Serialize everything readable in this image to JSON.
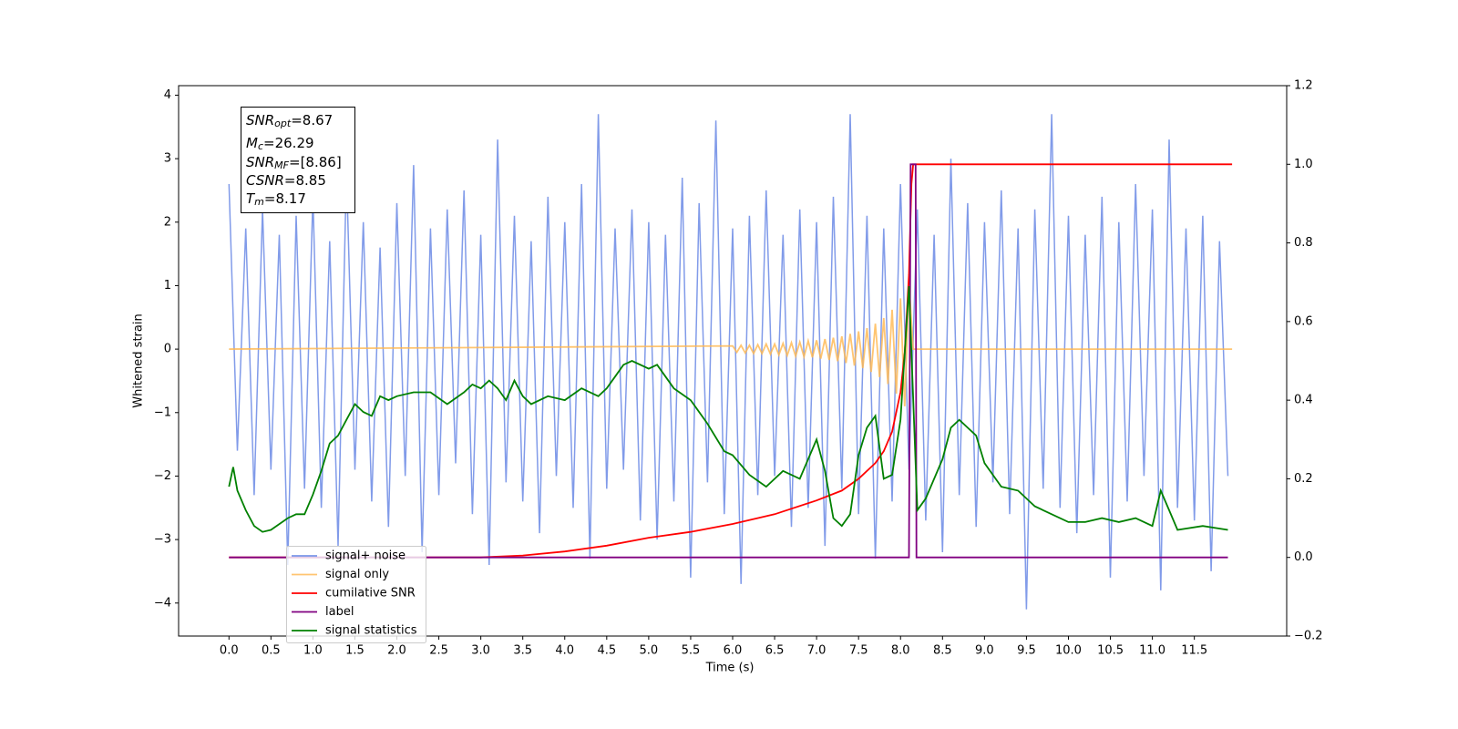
{
  "chart_data": {
    "type": "line",
    "xlabel": "Time (s)",
    "ylabel": "Whitened strain",
    "xlim": [
      -0.6,
      12.6
    ],
    "ylim": [
      -4.52,
      4.15
    ],
    "y2lim": [
      -0.2,
      1.2
    ],
    "xticks": [
      {
        "value": 0,
        "label": "0.0"
      },
      0.5,
      {
        "value": 1,
        "label": "1.0"
      },
      1.5,
      {
        "value": 2,
        "label": "2.0"
      },
      2.5,
      {
        "value": 3,
        "label": "3.0"
      },
      3.5,
      {
        "value": 4,
        "label": "4.0"
      },
      4.5,
      {
        "value": 5,
        "label": "5.0"
      },
      5.5,
      {
        "value": 6,
        "label": "6.0"
      },
      6.5,
      {
        "value": 7,
        "label": "7.0"
      },
      7.5,
      {
        "value": 8,
        "label": "8.0"
      },
      8.5,
      {
        "value": 9,
        "label": "9.0"
      },
      9.5,
      {
        "value": 10,
        "label": "10.0"
      },
      10.5,
      {
        "value": 11,
        "label": "11.0"
      },
      11.5
    ],
    "yticks": [
      {
        "value": -4,
        "label": "−4"
      },
      {
        "value": -3,
        "label": "−3"
      },
      {
        "value": -2,
        "label": "−2"
      },
      {
        "value": -1,
        "label": "−1"
      },
      0,
      1,
      2,
      3,
      4
    ],
    "y2ticks": [
      {
        "value": -0.2,
        "label": "−0.2"
      },
      {
        "value": 0,
        "label": "0.0"
      },
      0.2,
      0.4,
      0.6,
      0.8,
      {
        "value": 1,
        "label": "1.0"
      },
      1.2
    ],
    "legend": "lower left",
    "annotation_box": [
      {
        "symbol": "SNR",
        "subscript": "opt",
        "text": "=8.67"
      },
      {
        "symbol": "M",
        "subscript": "c",
        "text": "=26.29"
      },
      {
        "symbol": "SNR",
        "subscript": "MF",
        "text": "=[8.86]"
      },
      {
        "symbol": "CSNR",
        "subscript": "",
        "text": "=8.85"
      },
      {
        "symbol": "T",
        "subscript": "m",
        "text": "=8.17"
      }
    ],
    "series": [
      {
        "name": "signal+ noise",
        "color": "#7a96e8",
        "axis": "y",
        "x": [
          0.0,
          0.1,
          0.2,
          0.3,
          0.4,
          0.5,
          0.6,
          0.7,
          0.8,
          0.9,
          1.0,
          1.1,
          1.2,
          1.3,
          1.4,
          1.5,
          1.6,
          1.7,
          1.8,
          1.9,
          2.0,
          2.1,
          2.2,
          2.3,
          2.4,
          2.5,
          2.6,
          2.7,
          2.8,
          2.9,
          3.0,
          3.1,
          3.2,
          3.3,
          3.4,
          3.5,
          3.6,
          3.7,
          3.8,
          3.9,
          4.0,
          4.1,
          4.2,
          4.3,
          4.4,
          4.5,
          4.6,
          4.7,
          4.8,
          4.9,
          5.0,
          5.1,
          5.2,
          5.3,
          5.4,
          5.5,
          5.6,
          5.7,
          5.8,
          5.9,
          6.0,
          6.1,
          6.2,
          6.3,
          6.4,
          6.5,
          6.6,
          6.7,
          6.8,
          6.9,
          7.0,
          7.1,
          7.2,
          7.3,
          7.4,
          7.5,
          7.6,
          7.7,
          7.8,
          7.9,
          8.0,
          8.1,
          8.2,
          8.3,
          8.4,
          8.5,
          8.6,
          8.7,
          8.8,
          8.9,
          9.0,
          9.1,
          9.2,
          9.3,
          9.4,
          9.5,
          9.6,
          9.7,
          9.8,
          9.9,
          10.0,
          10.1,
          10.2,
          10.3,
          10.4,
          10.5,
          10.6,
          10.7,
          10.8,
          10.9,
          11.0,
          11.1,
          11.2,
          11.3,
          11.4,
          11.5,
          11.6,
          11.7,
          11.8,
          11.9
        ],
        "values": [
          2.6,
          -1.6,
          1.9,
          -2.3,
          2.2,
          -1.9,
          1.8,
          -3.4,
          2.1,
          -2.2,
          2.4,
          -2.5,
          1.7,
          -3.1,
          2.8,
          -1.9,
          2.0,
          -2.4,
          1.6,
          -2.8,
          2.3,
          -2.0,
          2.9,
          -3.2,
          1.9,
          -2.3,
          2.2,
          -1.8,
          2.5,
          -2.6,
          1.8,
          -3.4,
          3.3,
          -2.1,
          2.1,
          -2.4,
          1.7,
          -2.9,
          2.4,
          -2.0,
          2.0,
          -2.5,
          2.6,
          -3.3,
          3.7,
          -2.2,
          1.9,
          -1.9,
          2.2,
          -2.7,
          2.0,
          -3.0,
          1.8,
          -2.4,
          2.7,
          -3.6,
          2.3,
          -2.1,
          3.6,
          -2.6,
          1.9,
          -3.7,
          2.1,
          -2.3,
          2.5,
          -2.0,
          1.8,
          -2.8,
          2.2,
          -2.5,
          2.0,
          -3.1,
          2.4,
          -2.2,
          3.7,
          -2.6,
          2.1,
          -3.3,
          1.9,
          -2.4,
          2.6,
          -1.9,
          2.2,
          -2.7,
          1.8,
          -3.2,
          3.0,
          -2.3,
          2.3,
          -2.8,
          2.0,
          -2.1,
          2.5,
          -2.6,
          1.9,
          -4.1,
          2.2,
          -2.2,
          3.7,
          -2.5,
          2.1,
          -2.9,
          1.8,
          -2.3,
          2.4,
          -3.6,
          2.0,
          -2.4,
          2.6,
          -2.0,
          2.2,
          -3.8,
          3.3,
          -2.5,
          1.9,
          -2.7,
          2.1,
          -3.5,
          1.7,
          -2.0
        ]
      },
      {
        "name": "signal only",
        "color": "#ffb74d",
        "axis": "y",
        "x": [
          0.0,
          6.0,
          6.05,
          6.1,
          6.15,
          6.2,
          6.25,
          6.3,
          6.35,
          6.4,
          6.45,
          6.5,
          6.55,
          6.6,
          6.65,
          6.7,
          6.75,
          6.8,
          6.85,
          6.9,
          6.95,
          7.0,
          7.05,
          7.1,
          7.15,
          7.2,
          7.25,
          7.3,
          7.35,
          7.4,
          7.45,
          7.5,
          7.55,
          7.6,
          7.65,
          7.7,
          7.75,
          7.8,
          7.85,
          7.9,
          7.95,
          8.0,
          8.05,
          8.1,
          8.15,
          11.95
        ],
        "values": [
          0,
          0.05,
          -0.05,
          0.06,
          -0.06,
          0.06,
          -0.07,
          0.07,
          -0.07,
          0.08,
          -0.08,
          0.08,
          -0.09,
          0.09,
          -0.1,
          0.1,
          -0.11,
          0.11,
          -0.12,
          0.13,
          -0.13,
          0.14,
          -0.15,
          0.16,
          -0.17,
          0.18,
          -0.19,
          0.2,
          -0.22,
          0.24,
          -0.26,
          0.28,
          -0.3,
          0.33,
          -0.36,
          0.4,
          -0.44,
          0.49,
          -0.55,
          0.62,
          -0.7,
          0.8,
          -0.9,
          1.05,
          0,
          0
        ]
      },
      {
        "name": "cumilative SNR",
        "color": "#ff0000",
        "axis": "y2",
        "x": [
          0,
          3.0,
          3.5,
          4.0,
          4.5,
          5.0,
          5.5,
          6.0,
          6.5,
          7.0,
          7.3,
          7.5,
          7.7,
          7.8,
          7.9,
          8.0,
          8.05,
          8.1,
          8.13,
          8.15,
          11.95
        ],
        "values": [
          0,
          0,
          0.005,
          0.015,
          0.03,
          0.05,
          0.065,
          0.085,
          0.11,
          0.145,
          0.17,
          0.2,
          0.24,
          0.27,
          0.32,
          0.42,
          0.52,
          0.72,
          0.95,
          1.0,
          1.0
        ]
      },
      {
        "name": "label",
        "color": "#800080",
        "axis": "y2",
        "x": [
          0,
          8.1,
          8.12,
          8.18,
          8.19,
          11.9
        ],
        "values": [
          0,
          0,
          1.0,
          1.0,
          0,
          0
        ]
      },
      {
        "name": "signal statistics",
        "color": "#008000",
        "axis": "y2",
        "x": [
          0,
          0.05,
          0.1,
          0.2,
          0.3,
          0.4,
          0.5,
          0.7,
          0.8,
          0.9,
          1.0,
          1.1,
          1.2,
          1.3,
          1.4,
          1.5,
          1.6,
          1.7,
          1.8,
          1.9,
          2.0,
          2.2,
          2.4,
          2.6,
          2.8,
          2.9,
          3.0,
          3.1,
          3.2,
          3.3,
          3.4,
          3.5,
          3.6,
          3.8,
          4.0,
          4.2,
          4.4,
          4.5,
          4.6,
          4.7,
          4.8,
          5.0,
          5.1,
          5.3,
          5.5,
          5.7,
          5.9,
          6.0,
          6.2,
          6.4,
          6.6,
          6.8,
          7.0,
          7.1,
          7.2,
          7.3,
          7.4,
          7.5,
          7.6,
          7.7,
          7.8,
          7.9,
          8.0,
          8.1,
          8.2,
          8.3,
          8.5,
          8.6,
          8.7,
          8.9,
          9.0,
          9.2,
          9.4,
          9.6,
          9.8,
          10.0,
          10.2,
          10.4,
          10.6,
          10.8,
          11.0,
          11.1,
          11.2,
          11.3,
          11.6,
          11.9
        ],
        "values": [
          0.18,
          0.23,
          0.17,
          0.12,
          0.08,
          0.065,
          0.07,
          0.1,
          0.11,
          0.11,
          0.16,
          0.22,
          0.29,
          0.31,
          0.35,
          0.39,
          0.37,
          0.36,
          0.41,
          0.4,
          0.41,
          0.42,
          0.42,
          0.39,
          0.42,
          0.44,
          0.43,
          0.45,
          0.43,
          0.4,
          0.45,
          0.41,
          0.39,
          0.41,
          0.4,
          0.43,
          0.41,
          0.43,
          0.46,
          0.49,
          0.5,
          0.48,
          0.49,
          0.43,
          0.4,
          0.34,
          0.27,
          0.26,
          0.21,
          0.18,
          0.22,
          0.2,
          0.3,
          0.22,
          0.1,
          0.08,
          0.11,
          0.26,
          0.33,
          0.36,
          0.2,
          0.21,
          0.35,
          0.69,
          0.12,
          0.15,
          0.25,
          0.33,
          0.35,
          0.31,
          0.24,
          0.18,
          0.17,
          0.13,
          0.11,
          0.09,
          0.09,
          0.1,
          0.09,
          0.1,
          0.08,
          0.17,
          0.12,
          0.07,
          0.08,
          0.07
        ]
      }
    ]
  }
}
